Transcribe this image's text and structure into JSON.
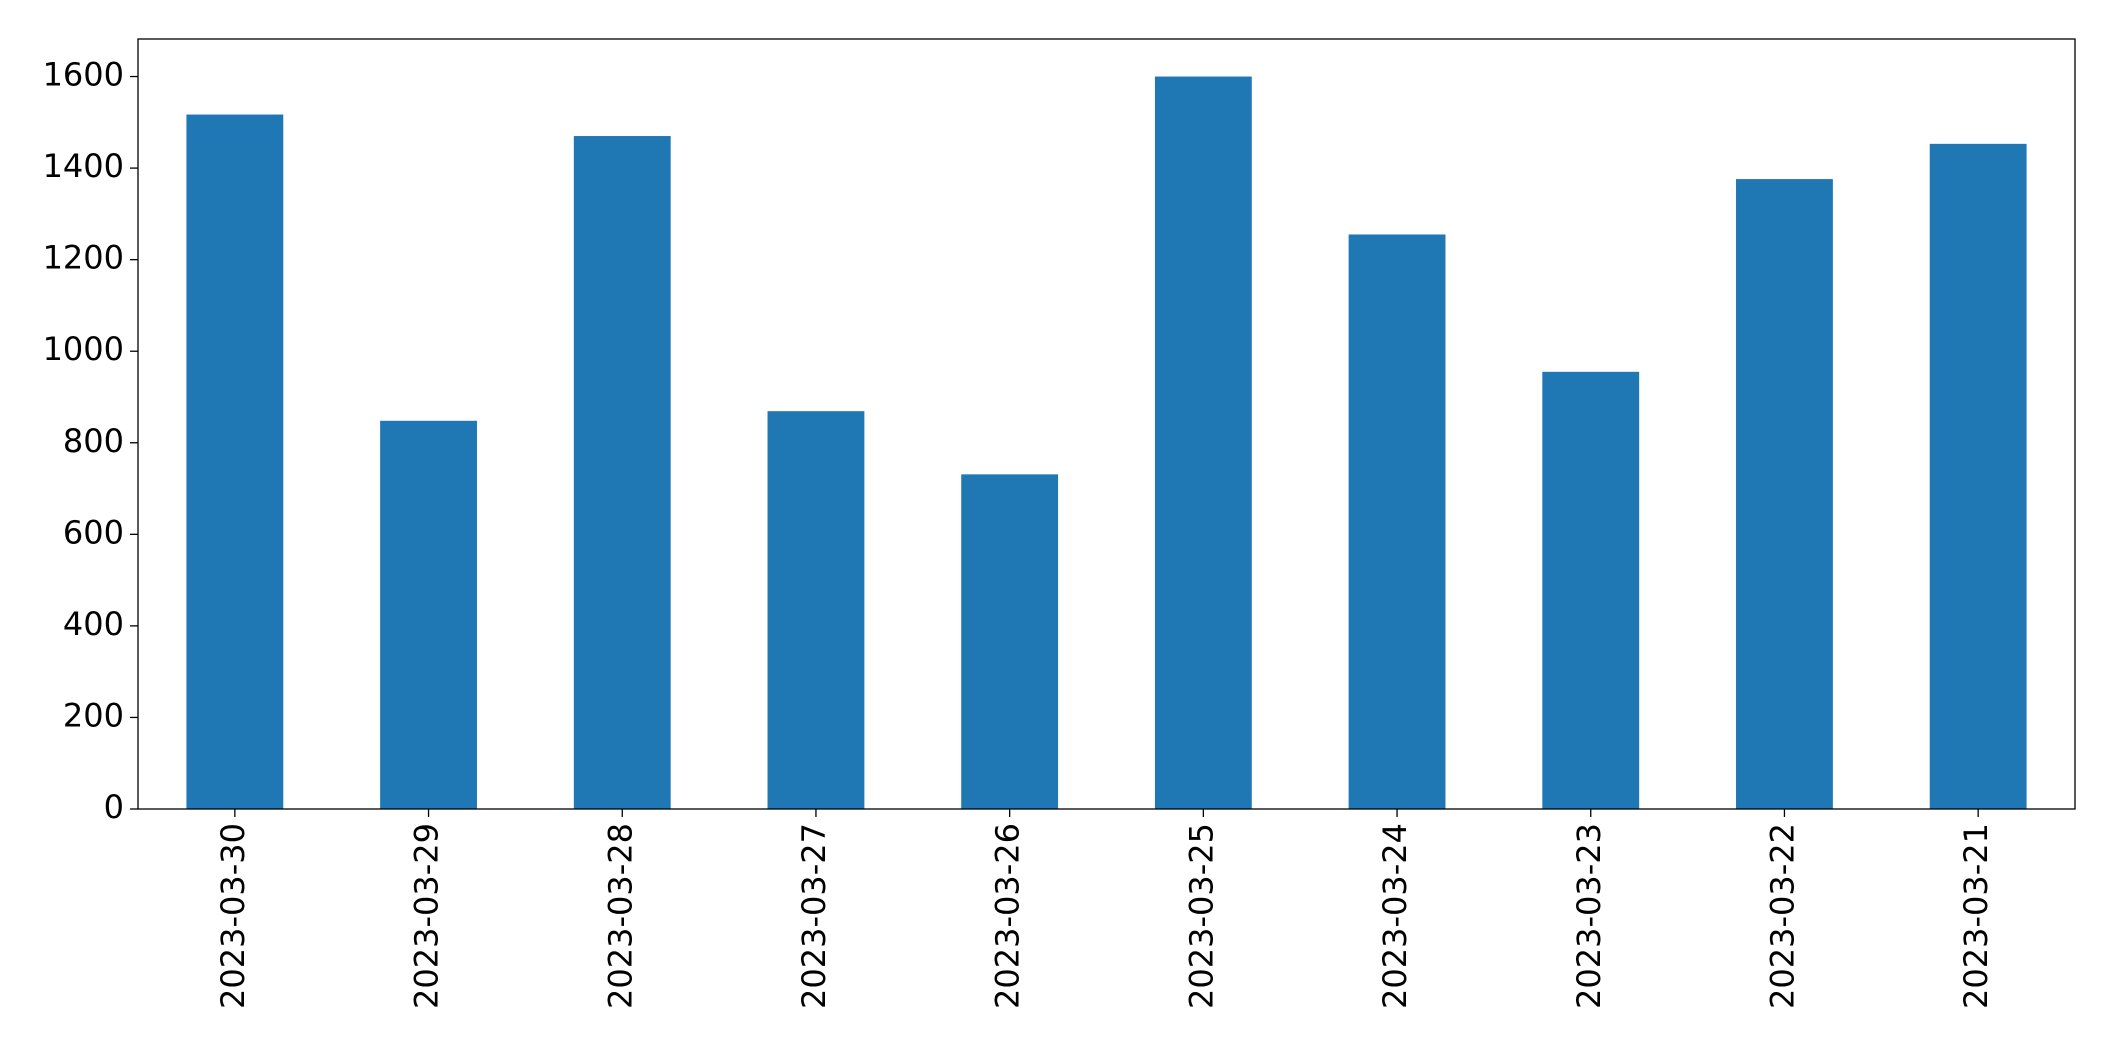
{
  "chart_data": {
    "type": "bar",
    "categories": [
      "2023-03-30",
      "2023-03-29",
      "2023-03-28",
      "2023-03-27",
      "2023-03-26",
      "2023-03-25",
      "2023-03-24",
      "2023-03-23",
      "2023-03-22",
      "2023-03-21"
    ],
    "values": [
      1517,
      848,
      1470,
      869,
      731,
      1600,
      1255,
      955,
      1376,
      1453
    ],
    "color": "#1f77b4",
    "ylim": [
      0,
      1682
    ],
    "yticks": [
      0,
      200,
      400,
      600,
      800,
      1000,
      1200,
      1400,
      1600
    ],
    "grid": false
  }
}
